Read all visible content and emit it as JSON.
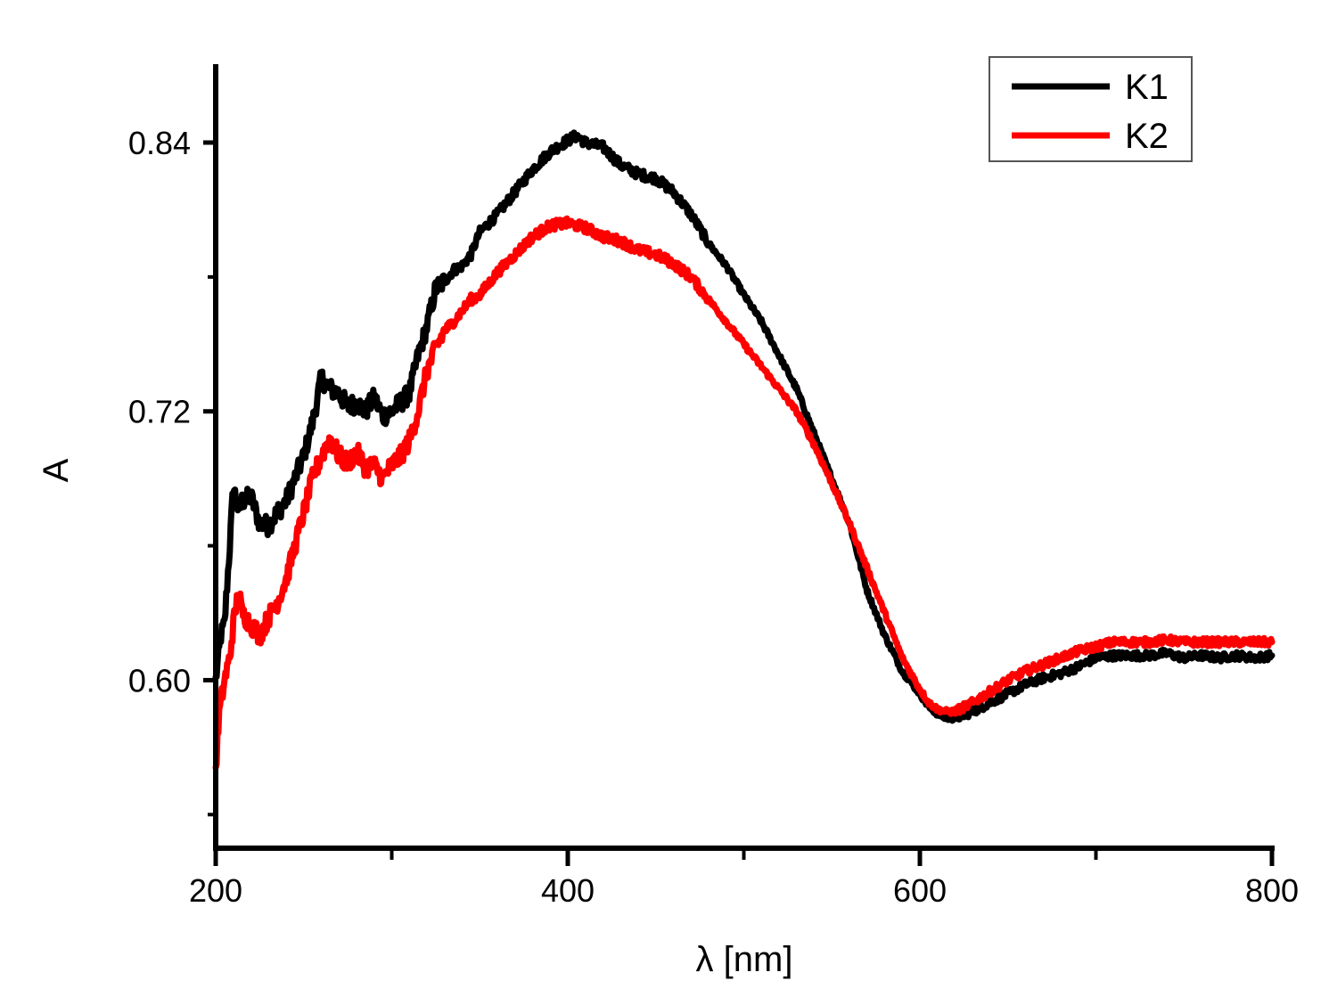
{
  "chart_data": {
    "type": "line",
    "title": "",
    "xlabel": "λ [nm]",
    "ylabel": "A",
    "xlim": [
      200,
      800
    ],
    "ylim": [
      0.525,
      0.875
    ],
    "x_ticks": [
      200,
      400,
      600,
      800
    ],
    "x_tick_labels": [
      "200",
      "400",
      "600",
      "800"
    ],
    "x_minor_ticks": [
      300,
      500,
      700
    ],
    "y_ticks": [
      0.6,
      0.72,
      0.84
    ],
    "y_tick_labels": [
      "0.60",
      "0.72",
      "0.84"
    ],
    "y_minor_ticks": [
      0.54,
      0.66,
      0.78
    ],
    "grid": false,
    "legend_position": "top-right",
    "series": [
      {
        "name": "K1",
        "color": "#000000",
        "x": [
          200,
          203,
          205,
          208,
          210,
          213,
          215,
          220,
          225,
          230,
          235,
          240,
          245,
          250,
          255,
          260,
          265,
          270,
          275,
          280,
          285,
          290,
          295,
          300,
          305,
          310,
          315,
          320,
          325,
          330,
          335,
          340,
          345,
          350,
          360,
          370,
          380,
          390,
          400,
          405,
          410,
          420,
          430,
          440,
          450,
          460,
          470,
          480,
          490,
          500,
          510,
          520,
          530,
          540,
          550,
          560,
          570,
          580,
          590,
          600,
          605,
          610,
          615,
          620,
          630,
          640,
          650,
          660,
          670,
          680,
          690,
          700,
          710,
          720,
          730,
          740,
          750,
          760,
          770,
          780,
          790,
          800
        ],
        "y": [
          0.6,
          0.62,
          0.625,
          0.66,
          0.687,
          0.675,
          0.68,
          0.682,
          0.67,
          0.669,
          0.675,
          0.68,
          0.69,
          0.7,
          0.715,
          0.735,
          0.73,
          0.728,
          0.722,
          0.724,
          0.72,
          0.726,
          0.718,
          0.72,
          0.724,
          0.728,
          0.745,
          0.758,
          0.775,
          0.778,
          0.783,
          0.785,
          0.79,
          0.8,
          0.808,
          0.818,
          0.828,
          0.836,
          0.841,
          0.843,
          0.84,
          0.838,
          0.83,
          0.826,
          0.824,
          0.818,
          0.808,
          0.795,
          0.785,
          0.772,
          0.76,
          0.745,
          0.73,
          0.71,
          0.69,
          0.67,
          0.64,
          0.62,
          0.604,
          0.594,
          0.588,
          0.585,
          0.583,
          0.583,
          0.586,
          0.59,
          0.594,
          0.598,
          0.601,
          0.603,
          0.606,
          0.61,
          0.611,
          0.611,
          0.611,
          0.612,
          0.61,
          0.611,
          0.61,
          0.611,
          0.61,
          0.611
        ]
      },
      {
        "name": "K2",
        "color": "#ff0000",
        "x": [
          200,
          202,
          205,
          208,
          210,
          213,
          215,
          220,
          225,
          230,
          235,
          240,
          245,
          250,
          255,
          260,
          265,
          270,
          275,
          280,
          285,
          290,
          295,
          300,
          305,
          310,
          315,
          320,
          325,
          330,
          335,
          340,
          345,
          350,
          360,
          370,
          380,
          390,
          400,
          410,
          420,
          430,
          440,
          450,
          460,
          470,
          480,
          490,
          500,
          510,
          520,
          530,
          540,
          550,
          560,
          570,
          580,
          590,
          600,
          605,
          610,
          615,
          620,
          630,
          640,
          650,
          660,
          670,
          680,
          690,
          700,
          710,
          720,
          730,
          740,
          750,
          760,
          770,
          780,
          790,
          800
        ],
        "y": [
          0.56,
          0.585,
          0.6,
          0.61,
          0.625,
          0.64,
          0.63,
          0.625,
          0.62,
          0.628,
          0.635,
          0.645,
          0.66,
          0.675,
          0.69,
          0.7,
          0.708,
          0.7,
          0.697,
          0.702,
          0.695,
          0.696,
          0.69,
          0.696,
          0.7,
          0.707,
          0.72,
          0.738,
          0.748,
          0.756,
          0.76,
          0.765,
          0.77,
          0.772,
          0.782,
          0.79,
          0.798,
          0.803,
          0.804,
          0.802,
          0.798,
          0.796,
          0.792,
          0.79,
          0.786,
          0.78,
          0.77,
          0.76,
          0.75,
          0.74,
          0.73,
          0.72,
          0.705,
          0.688,
          0.67,
          0.65,
          0.63,
          0.61,
          0.596,
          0.59,
          0.587,
          0.586,
          0.586,
          0.59,
          0.595,
          0.6,
          0.604,
          0.607,
          0.61,
          0.613,
          0.615,
          0.617,
          0.617,
          0.617,
          0.618,
          0.617,
          0.617,
          0.617,
          0.617,
          0.617,
          0.617
        ]
      }
    ]
  }
}
